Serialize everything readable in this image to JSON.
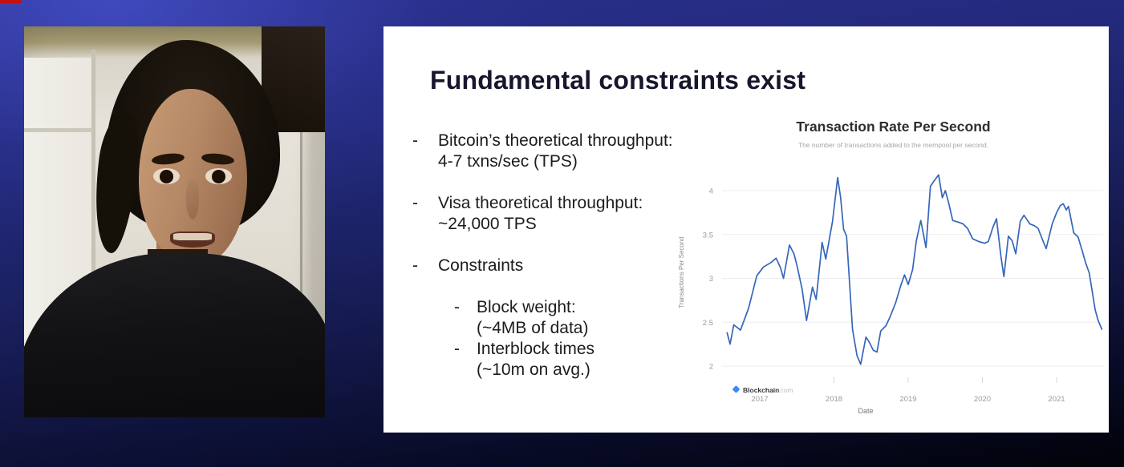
{
  "slide": {
    "title": "Fundamental constraints exist",
    "bullet_dash": "-",
    "bullets": [
      {
        "lines": [
          "Bitcoin’s theoretical throughput:",
          "4-7 txns/sec (TPS)"
        ]
      },
      {
        "lines": [
          "Visa theoretical throughput:",
          "~24,000 TPS"
        ]
      },
      {
        "lines": [
          "Constraints"
        ],
        "sub": [
          {
            "lines": [
              "Block weight:",
              "(~4MB of data)"
            ]
          },
          {
            "lines": [
              "Interblock times",
              "(~10m on avg.)"
            ]
          }
        ]
      }
    ]
  },
  "chart_data": {
    "type": "line",
    "title": "Transaction Rate Per Second",
    "subtitle": "The number of transactions added to the mempool per second.",
    "xlabel": "Date",
    "ylabel": "Transactions Per Second",
    "x_ticks": [
      2017,
      2018,
      2019,
      2020,
      2021
    ],
    "y_ticks": [
      2,
      2.5,
      3,
      3.5,
      4
    ],
    "xlim": [
      2016.5,
      2021.75
    ],
    "ylim": [
      1.85,
      4.3
    ],
    "grid": "horizontal",
    "line_color": "#3566bb",
    "source": {
      "brand": "Blockchain",
      "tld": ".com"
    },
    "series": [
      {
        "name": "Transaction Rate Per Second",
        "points": [
          [
            2016.56,
            2.38
          ],
          [
            2016.6,
            2.25
          ],
          [
            2016.65,
            2.47
          ],
          [
            2016.74,
            2.41
          ],
          [
            2016.85,
            2.66
          ],
          [
            2016.96,
            3.03
          ],
          [
            2017.05,
            3.13
          ],
          [
            2017.15,
            3.18
          ],
          [
            2017.22,
            3.23
          ],
          [
            2017.28,
            3.12
          ],
          [
            2017.32,
            3.0
          ],
          [
            2017.4,
            3.38
          ],
          [
            2017.46,
            3.28
          ],
          [
            2017.5,
            3.15
          ],
          [
            2017.57,
            2.88
          ],
          [
            2017.63,
            2.52
          ],
          [
            2017.71,
            2.9
          ],
          [
            2017.76,
            2.76
          ],
          [
            2017.84,
            3.41
          ],
          [
            2017.89,
            3.22
          ],
          [
            2017.98,
            3.65
          ],
          [
            2018.05,
            4.15
          ],
          [
            2018.09,
            3.92
          ],
          [
            2018.13,
            3.56
          ],
          [
            2018.17,
            3.48
          ],
          [
            2018.25,
            2.42
          ],
          [
            2018.31,
            2.12
          ],
          [
            2018.36,
            2.02
          ],
          [
            2018.43,
            2.33
          ],
          [
            2018.47,
            2.28
          ],
          [
            2018.53,
            2.18
          ],
          [
            2018.58,
            2.16
          ],
          [
            2018.63,
            2.4
          ],
          [
            2018.7,
            2.46
          ],
          [
            2018.76,
            2.57
          ],
          [
            2018.83,
            2.72
          ],
          [
            2018.9,
            2.92
          ],
          [
            2018.95,
            3.04
          ],
          [
            2019.0,
            2.93
          ],
          [
            2019.06,
            3.1
          ],
          [
            2019.11,
            3.43
          ],
          [
            2019.17,
            3.66
          ],
          [
            2019.24,
            3.35
          ],
          [
            2019.3,
            4.05
          ],
          [
            2019.34,
            4.1
          ],
          [
            2019.41,
            4.18
          ],
          [
            2019.46,
            3.92
          ],
          [
            2019.5,
            4.0
          ],
          [
            2019.54,
            3.88
          ],
          [
            2019.6,
            3.66
          ],
          [
            2019.68,
            3.64
          ],
          [
            2019.74,
            3.62
          ],
          [
            2019.8,
            3.57
          ],
          [
            2019.87,
            3.45
          ],
          [
            2019.95,
            3.42
          ],
          [
            2020.03,
            3.4
          ],
          [
            2020.08,
            3.42
          ],
          [
            2020.14,
            3.58
          ],
          [
            2020.19,
            3.68
          ],
          [
            2020.25,
            3.25
          ],
          [
            2020.29,
            3.02
          ],
          [
            2020.35,
            3.48
          ],
          [
            2020.4,
            3.43
          ],
          [
            2020.45,
            3.28
          ],
          [
            2020.51,
            3.65
          ],
          [
            2020.56,
            3.72
          ],
          [
            2020.64,
            3.62
          ],
          [
            2020.7,
            3.6
          ],
          [
            2020.75,
            3.57
          ],
          [
            2020.82,
            3.42
          ],
          [
            2020.86,
            3.34
          ],
          [
            2020.94,
            3.62
          ],
          [
            2021.0,
            3.75
          ],
          [
            2021.05,
            3.83
          ],
          [
            2021.09,
            3.85
          ],
          [
            2021.13,
            3.78
          ],
          [
            2021.16,
            3.82
          ],
          [
            2021.23,
            3.52
          ],
          [
            2021.29,
            3.47
          ],
          [
            2021.35,
            3.3
          ],
          [
            2021.39,
            3.18
          ],
          [
            2021.44,
            3.06
          ],
          [
            2021.48,
            2.85
          ],
          [
            2021.52,
            2.64
          ],
          [
            2021.56,
            2.52
          ],
          [
            2021.61,
            2.42
          ]
        ]
      }
    ]
  },
  "colors": {
    "line": "#3566bb",
    "slide_background": "#ffffff",
    "page_background_top": "#2a318f",
    "page_background_bottom": "#020309",
    "slide_title": "#16162c"
  }
}
